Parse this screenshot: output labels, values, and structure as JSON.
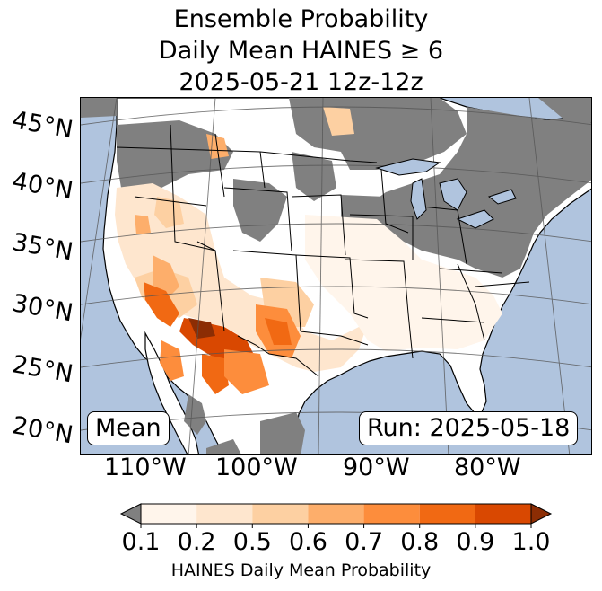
{
  "title": {
    "line1": "Ensemble Probability",
    "line2": "Daily Mean HAINES ≥ 6",
    "line3": "2025-05-21 12z-12z"
  },
  "map": {
    "lat_labels": [
      "45°N",
      "40°N",
      "35°N",
      "30°N",
      "25°N",
      "20°N"
    ],
    "lon_labels": [
      "110°W",
      "100°W",
      "90°W",
      "80°W"
    ],
    "left_box": "Mean",
    "right_box": "Run: 2025-05-18",
    "colors": {
      "ocean": "#b0c4de",
      "no_data": "#808080",
      "land": "#ffffff"
    }
  },
  "colorbar": {
    "label": "HAINES Daily Mean Probability",
    "ticks": [
      "0.1",
      "0.2",
      "0.5",
      "0.6",
      "0.7",
      "0.8",
      "0.9",
      "1.0"
    ],
    "colors": [
      "#fff5eb",
      "#fee6ce",
      "#fdd0a2",
      "#fdae6b",
      "#fd8d3c",
      "#f16913",
      "#d94801",
      "#8c2d04"
    ],
    "under_color": "#808080"
  }
}
